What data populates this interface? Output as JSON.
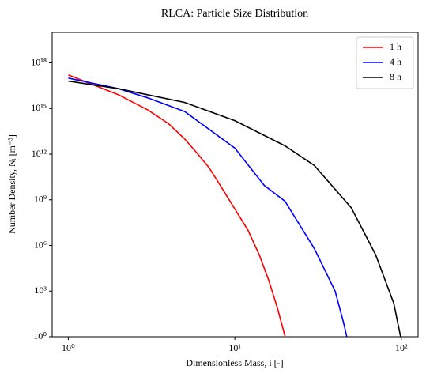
{
  "chart_data": {
    "type": "line",
    "title": "RLCA: Particle Size Distribution",
    "xlabel": "Dimensionless Mass, i [-]",
    "ylabel": "Number Density, Nᵢ [m⁻³]",
    "xscale": "log",
    "yscale": "log",
    "xlim": [
      0.8,
      126
    ],
    "ylim": [
      1,
      1e+20
    ],
    "xticks": [
      {
        "value": 1,
        "label": "10⁰"
      },
      {
        "value": 10,
        "label": "10¹"
      },
      {
        "value": 100,
        "label": "10²"
      }
    ],
    "yticks": [
      {
        "value": 1,
        "label": "10⁰"
      },
      {
        "value": 1000,
        "label": "10³"
      },
      {
        "value": 1000000.0,
        "label": "10⁶"
      },
      {
        "value": 1000000000.0,
        "label": "10⁹"
      },
      {
        "value": 1000000000000.0,
        "label": "10¹²"
      },
      {
        "value": 1000000000000000.0,
        "label": "10¹⁵"
      },
      {
        "value": 1e+18,
        "label": "10¹⁸"
      }
    ],
    "legend": "upper right",
    "series": [
      {
        "name": "1 h",
        "color": "#ff0000",
        "x": [
          1,
          2,
          3,
          4,
          5,
          6,
          7,
          8,
          9,
          10,
          12,
          14,
          16,
          18,
          20
        ],
        "values": [
          1.6e+17,
          8000000000000000.0,
          800000000000000.0,
          100000000000000.0,
          10000000000000.0,
          1000000000000.0,
          130000000000.0,
          13000000000.0,
          1600000000.0,
          250000000.0,
          10000000.0,
          250000.0,
          5000,
          80,
          1.1
        ]
      },
      {
        "name": "4 h",
        "color": "#0000ff",
        "x": [
          1,
          2,
          3,
          5,
          10,
          15,
          20,
          30,
          40,
          45,
          47
        ],
        "values": [
          1e+17,
          2e+16,
          5000000000000000.0,
          630000000000000.0,
          2500000000000.0,
          9000000000.0,
          800000000.0,
          630000.0,
          1000,
          8,
          1
        ]
      },
      {
        "name": "8 h",
        "color": "#000000",
        "x": [
          1,
          2,
          5,
          10,
          20,
          30,
          50,
          70,
          90,
          99
        ],
        "values": [
          6.3e+16,
          2e+16,
          2500000000000000.0,
          160000000000000.0,
          3500000000000.0,
          180000000000.0,
          300000000.0,
          250000.0,
          160,
          1
        ]
      }
    ]
  }
}
